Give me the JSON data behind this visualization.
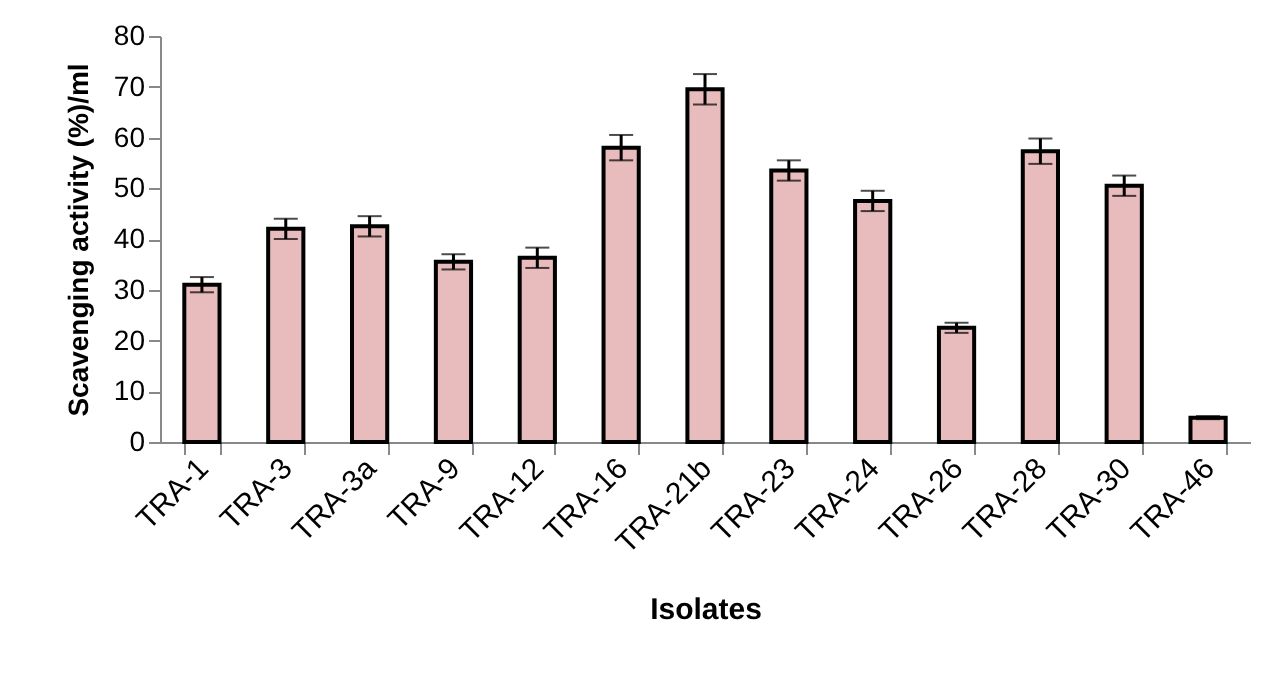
{
  "chart_data": {
    "type": "bar",
    "xlabel": "Isolates",
    "ylabel": "Scavenging activity (%)/ml",
    "categories": [
      "TRA-1",
      "TRA-3",
      "TRA-3a",
      "TRA-9",
      "TRA-12",
      "TRA-16",
      "TRA-21b",
      "TRA-23",
      "TRA-24",
      "TRA-26",
      "TRA-28",
      "TRA-30",
      "TRA-46"
    ],
    "values": [
      31,
      42,
      42.5,
      35.5,
      36.3,
      58,
      69.5,
      53.5,
      47.5,
      22.5,
      57.3,
      50.5,
      4.8
    ],
    "errors": [
      1.5,
      2,
      2,
      1.5,
      2,
      2.5,
      3,
      2,
      2,
      1,
      2.5,
      2,
      0.3
    ],
    "color": "#e8bcbc",
    "ylim": [
      0,
      80
    ],
    "yticks": [
      0,
      10,
      20,
      30,
      40,
      50,
      60,
      70,
      80
    ],
    "grid": false
  }
}
